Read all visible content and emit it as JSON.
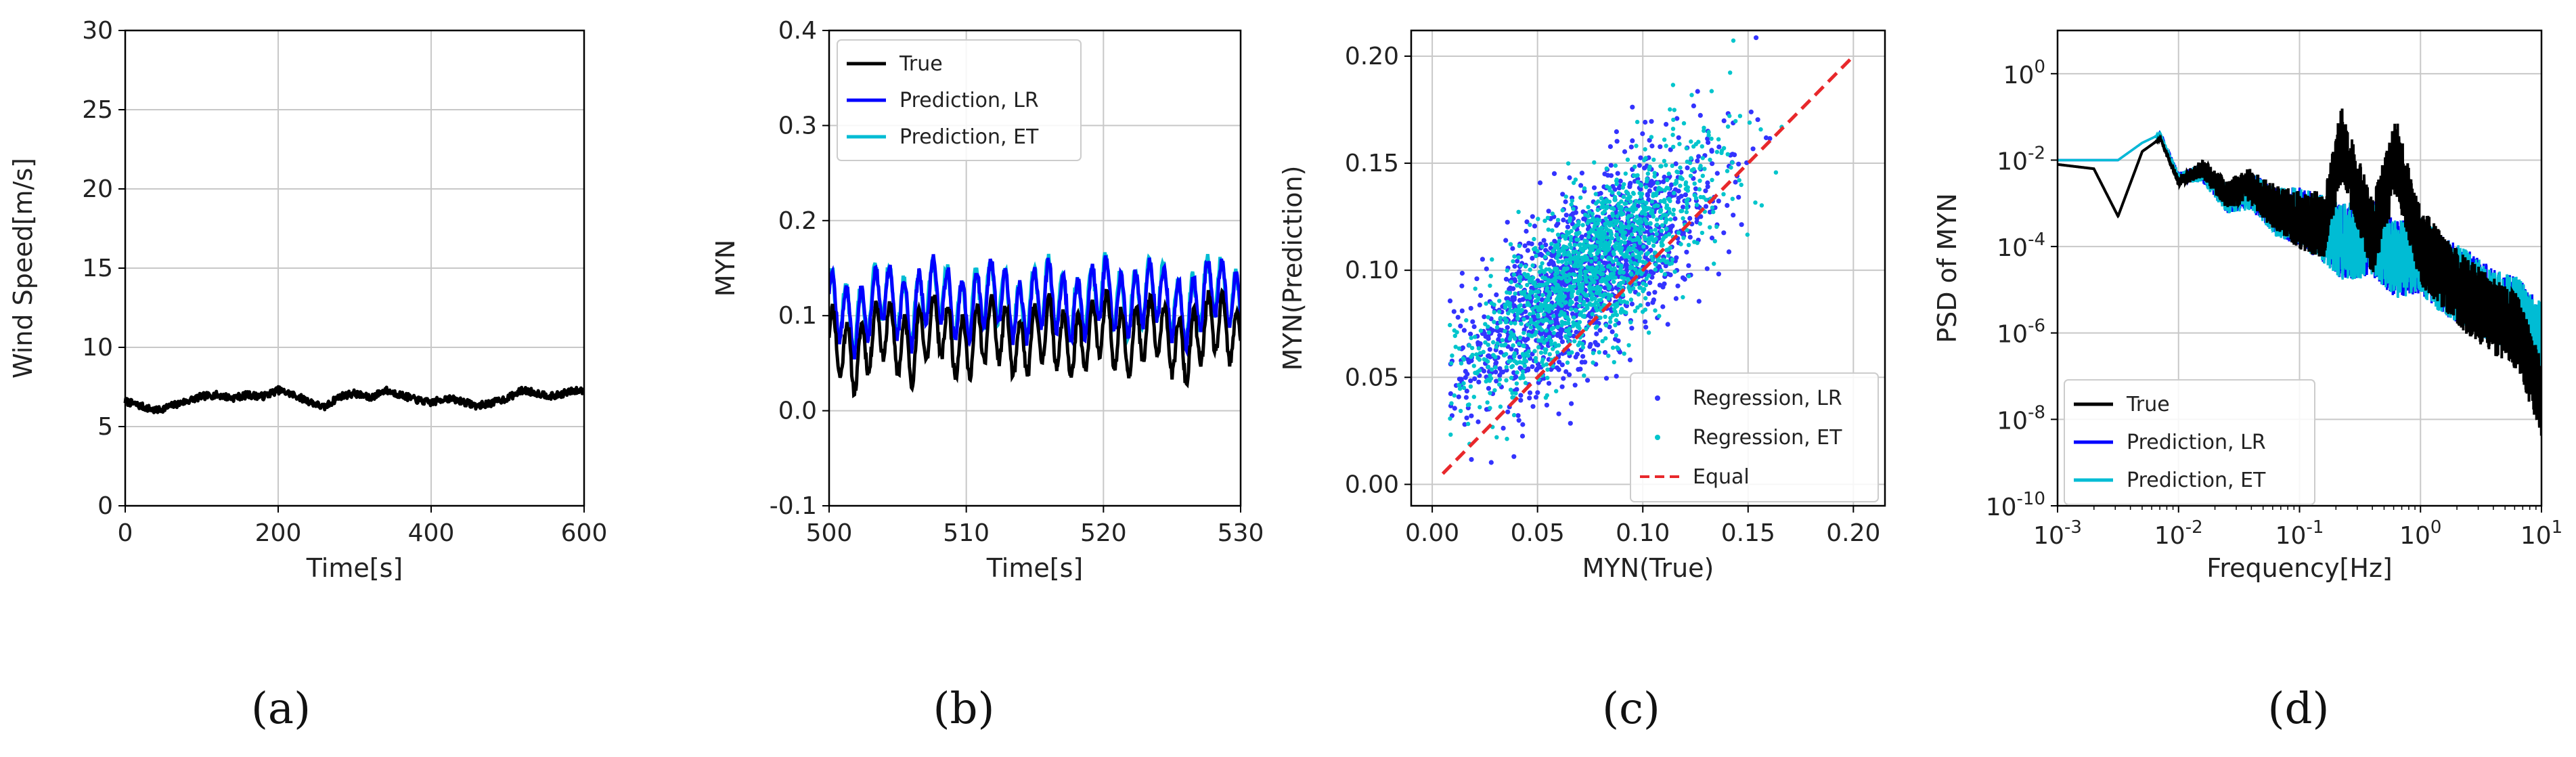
{
  "chart_data": [
    {
      "id": "a",
      "type": "line",
      "panel_label": "(a)",
      "title": "",
      "xlabel": "Time[s]",
      "ylabel": "Wind Speed[m/s]",
      "xlim": [
        0,
        600
      ],
      "ylim": [
        0,
        30
      ],
      "xticks": [
        0,
        200,
        400,
        600
      ],
      "yticks": [
        0,
        5,
        10,
        15,
        20,
        25,
        30
      ],
      "grid": true,
      "series": [
        {
          "name": "Wind speed",
          "color": "#000000",
          "x": [
            0,
            20,
            40,
            60,
            80,
            100,
            120,
            140,
            160,
            180,
            200,
            220,
            240,
            260,
            280,
            300,
            320,
            340,
            360,
            380,
            400,
            420,
            440,
            460,
            480,
            500,
            520,
            540,
            560,
            580,
            600
          ],
          "y": [
            6.6,
            6.3,
            6.0,
            6.3,
            6.6,
            6.9,
            7.0,
            6.8,
            7.0,
            6.9,
            7.3,
            7.0,
            6.6,
            6.2,
            6.9,
            7.1,
            6.8,
            7.3,
            7.0,
            6.7,
            6.5,
            6.8,
            6.6,
            6.3,
            6.5,
            6.8,
            7.3,
            7.1,
            6.9,
            7.2,
            7.3
          ]
        }
      ]
    },
    {
      "id": "b",
      "type": "line",
      "panel_label": "(b)",
      "title": "",
      "xlabel": "Time[s]",
      "ylabel": "MYN",
      "xlim": [
        500,
        530
      ],
      "ylim": [
        -0.1,
        0.4
      ],
      "xticks": [
        500,
        510,
        520,
        530
      ],
      "yticks": [
        -0.1,
        0.0,
        0.1,
        0.2,
        0.3,
        0.4
      ],
      "grid": true,
      "legend_position": "top-left",
      "series": [
        {
          "name": "True",
          "color": "#000000",
          "offset": 0.0
        },
        {
          "name": "Prediction, LR",
          "color": "#0000ff",
          "offset": 0.038
        },
        {
          "name": "Prediction, ET",
          "color": "#00bcd4",
          "offset": 0.04
        }
      ],
      "series_data": {
        "x": [
          500,
          501,
          502,
          503,
          504,
          505,
          506,
          507,
          508,
          509,
          510,
          511,
          512,
          513,
          514,
          515,
          516,
          517,
          518,
          519,
          520,
          521,
          522,
          523,
          524,
          525,
          526,
          527,
          528,
          529,
          530
        ],
        "base": [
          0.08,
          0.065,
          0.05,
          0.075,
          0.09,
          0.07,
          0.06,
          0.085,
          0.092,
          0.07,
          0.065,
          0.08,
          0.09,
          0.075,
          0.06,
          0.08,
          0.088,
          0.072,
          0.065,
          0.078,
          0.095,
          0.075,
          0.07,
          0.085,
          0.09,
          0.07,
          0.06,
          0.08,
          0.095,
          0.085,
          0.07
        ],
        "cycles_per_second": 0.95,
        "oscillation_amplitude": 0.032
      }
    },
    {
      "id": "c",
      "type": "scatter",
      "panel_label": "(c)",
      "title": "",
      "xlabel": "MYN(True)",
      "ylabel": "MYN(Prediction)",
      "xlim": [
        -0.01,
        0.215
      ],
      "ylim": [
        -0.01,
        0.212
      ],
      "xticks": [
        0.0,
        0.05,
        0.1,
        0.15,
        0.2
      ],
      "yticks": [
        0.0,
        0.05,
        0.1,
        0.15,
        0.2
      ],
      "xtick_labels": [
        "0.00",
        "0.05",
        "0.10",
        "0.15",
        "0.20"
      ],
      "ytick_labels": [
        "0.00",
        "0.05",
        "0.10",
        "0.15",
        "0.20"
      ],
      "grid": true,
      "legend_position": "bottom-right",
      "series": [
        {
          "name": "Regression, LR",
          "color": "#3333ff",
          "marker": "dot"
        },
        {
          "name": "Regression, ET",
          "color": "#00c5cc",
          "marker": "dot"
        },
        {
          "name": "Equal",
          "color": "#e8282b",
          "style": "dashed",
          "x": [
            0.005,
            0.2
          ],
          "y": [
            0.005,
            0.2
          ]
        }
      ],
      "cloud": {
        "center": [
          0.075,
          0.1
        ],
        "spread_x": 0.03,
        "slope": 0.75,
        "spread_y": 0.018,
        "points_per_series": 1400
      }
    },
    {
      "id": "d",
      "type": "line",
      "panel_label": "(d)",
      "title": "",
      "xlabel": "Frequency[Hz]",
      "ylabel": "PSD of MYN",
      "xscale": "log",
      "yscale": "log",
      "xlim": [
        0.001,
        10
      ],
      "ylim": [
        1e-10,
        10
      ],
      "xtick_exponents": [
        -3,
        -2,
        -1,
        0,
        1
      ],
      "ytick_exponents": [
        -10,
        -8,
        -6,
        -4,
        -2,
        0
      ],
      "tick_base": "10",
      "grid": true,
      "legend_position": "bottom-left",
      "series": [
        {
          "name": "True",
          "color": "#000000"
        },
        {
          "name": "Prediction, LR",
          "color": "#0000ff"
        },
        {
          "name": "Prediction, ET",
          "color": "#00bcd4"
        }
      ],
      "spectrum": {
        "log10_frequency": [
          -3,
          -2.7,
          -2.5,
          -2.3,
          -2.15,
          -2.0,
          -1.8,
          -1.6,
          -1.4,
          -1.2,
          -1.0,
          -0.8,
          -0.65,
          -0.4,
          -0.2,
          0.0,
          0.2,
          0.4,
          0.6,
          0.8,
          1.0
        ],
        "log10_psd_true": [
          -2.1,
          -2.2,
          -3.3,
          -1.8,
          -1.5,
          -2.5,
          -2.2,
          -2.8,
          -2.6,
          -3.1,
          -3.4,
          -3.5,
          -1.6,
          -3.8,
          -1.9,
          -4.0,
          -4.6,
          -5.2,
          -5.6,
          -6.0,
          -7.5
        ],
        "log10_psd_pred": [
          -2.0,
          -2.0,
          -2.0,
          -1.6,
          -1.4,
          -2.4,
          -2.3,
          -2.9,
          -2.7,
          -3.2,
          -3.3,
          -3.6,
          -3.9,
          -3.8,
          -4.3,
          -4.2,
          -4.7,
          -5.0,
          -5.4,
          -5.6,
          -6.2
        ],
        "noise_log10_amplitude": 0.9
      }
    }
  ]
}
